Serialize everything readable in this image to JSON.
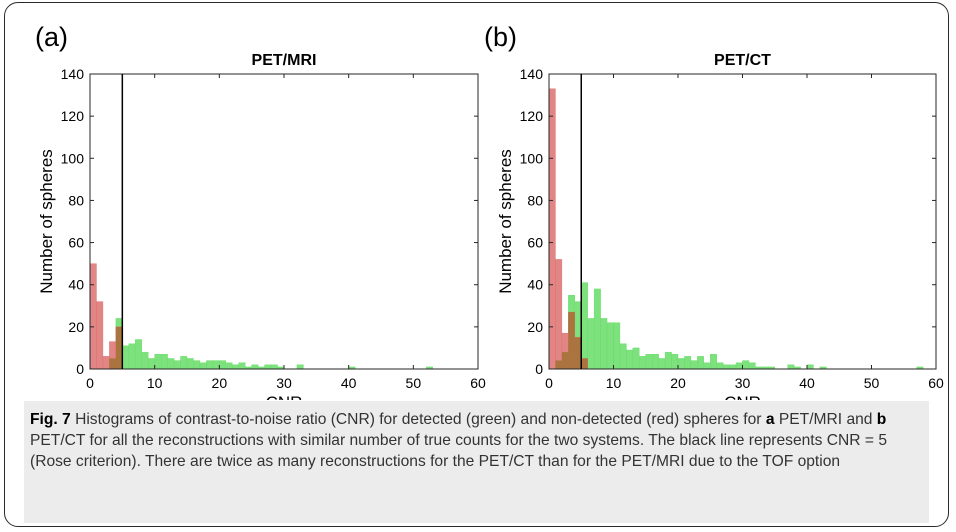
{
  "panels": [
    {
      "label": "(a)",
      "title": "PET/MRI"
    },
    {
      "label": "(b)",
      "title": "PET/CT"
    }
  ],
  "colors": {
    "detected": "#66dd66",
    "non_detected": "#dd7070",
    "overlap": "#a5723a",
    "threshold_line": "#000000"
  },
  "chart_data": [
    {
      "type": "bar",
      "title": "PET/MRI",
      "xlabel": "CNR",
      "ylabel": "Number of spheres",
      "xlim": [
        0,
        60
      ],
      "ylim": [
        0,
        140
      ],
      "xticks": [
        0,
        10,
        20,
        30,
        40,
        50,
        60
      ],
      "yticks": [
        0,
        20,
        40,
        60,
        80,
        100,
        120,
        140
      ],
      "bin_width": 1,
      "threshold_x": 5,
      "series": [
        {
          "values": [
            [
              0,
              50
            ],
            [
              1,
              32
            ],
            [
              2,
              6
            ],
            [
              3,
              13
            ],
            [
              4,
              20
            ]
          ]
        },
        {
          "values": [
            [
              3,
              5
            ],
            [
              4,
              24
            ],
            [
              5,
              11
            ],
            [
              6,
              12
            ],
            [
              7,
              14
            ],
            [
              8,
              8
            ],
            [
              9,
              5
            ],
            [
              10,
              7
            ],
            [
              11,
              7
            ],
            [
              12,
              5
            ],
            [
              13,
              4
            ],
            [
              14,
              6
            ],
            [
              15,
              5
            ],
            [
              16,
              4
            ],
            [
              17,
              3
            ],
            [
              18,
              4
            ],
            [
              19,
              4
            ],
            [
              20,
              4
            ],
            [
              21,
              3
            ],
            [
              22,
              2
            ],
            [
              23,
              3
            ],
            [
              24,
              1
            ],
            [
              25,
              2
            ],
            [
              26,
              1
            ],
            [
              27,
              2
            ],
            [
              28,
              2
            ],
            [
              29,
              1
            ],
            [
              32,
              2
            ],
            [
              40,
              1
            ],
            [
              52,
              1
            ]
          ]
        }
      ]
    },
    {
      "type": "bar",
      "title": "PET/CT",
      "xlabel": "CNR",
      "ylabel": "Number of spheres",
      "xlim": [
        0,
        60
      ],
      "ylim": [
        0,
        140
      ],
      "xticks": [
        0,
        10,
        20,
        30,
        40,
        50,
        60
      ],
      "yticks": [
        0,
        20,
        40,
        60,
        80,
        100,
        120,
        140
      ],
      "bin_width": 1,
      "threshold_x": 5,
      "series": [
        {
          "values": [
            [
              0,
              133
            ],
            [
              1,
              52
            ],
            [
              2,
              17
            ],
            [
              3,
              27
            ],
            [
              4,
              15
            ],
            [
              5,
              5
            ]
          ]
        },
        {
          "values": [
            [
              1,
              4
            ],
            [
              2,
              8
            ],
            [
              3,
              35
            ],
            [
              4,
              32
            ],
            [
              5,
              41
            ],
            [
              6,
              24
            ],
            [
              7,
              38
            ],
            [
              8,
              24
            ],
            [
              9,
              22
            ],
            [
              10,
              22
            ],
            [
              11,
              12
            ],
            [
              12,
              9
            ],
            [
              13,
              10
            ],
            [
              14,
              6
            ],
            [
              15,
              7
            ],
            [
              16,
              7
            ],
            [
              17,
              5
            ],
            [
              18,
              8
            ],
            [
              19,
              7
            ],
            [
              20,
              5
            ],
            [
              21,
              6
            ],
            [
              22,
              4
            ],
            [
              23,
              6
            ],
            [
              24,
              3
            ],
            [
              25,
              7
            ],
            [
              26,
              3
            ],
            [
              27,
              2
            ],
            [
              28,
              2
            ],
            [
              29,
              3
            ],
            [
              30,
              4
            ],
            [
              31,
              3
            ],
            [
              32,
              1
            ],
            [
              33,
              1
            ],
            [
              34,
              1
            ],
            [
              37,
              2
            ],
            [
              38,
              1
            ],
            [
              40,
              2
            ],
            [
              42,
              1
            ],
            [
              57,
              1
            ]
          ]
        }
      ]
    }
  ],
  "caption": {
    "fig_label": "Fig. 7",
    "part1": " Histograms of contrast-to-noise ratio (CNR) for detected (green) and non-detected (red) spheres for ",
    "a_label": "a",
    "part2": " PET/MRI and ",
    "b_label": "b",
    "part3": " PET/CT for all the reconstructions with similar number of true counts for the two systems. The black line represents CNR = 5 (Rose criterion). There are twice as many reconstructions for the PET/CT than for the PET/MRI due to the TOF option"
  }
}
